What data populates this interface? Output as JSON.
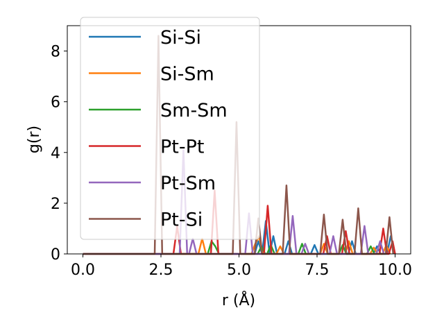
{
  "chart_data": {
    "type": "line",
    "title": "",
    "xlabel": "r (Å)",
    "ylabel": "g(r)",
    "xlim": [
      -0.5,
      10.5
    ],
    "ylim": [
      0,
      9
    ],
    "xticks": [
      "0.0",
      "2.5",
      "5.0",
      "7.5",
      "10.0"
    ],
    "yticks": [
      "0",
      "2",
      "4",
      "6",
      "8"
    ],
    "legend_position": "upper-left",
    "grid": false,
    "series": [
      {
        "name": "Si-Si",
        "color": "#1f77b4",
        "points": [
          [
            0,
            0
          ],
          [
            5.5,
            0
          ],
          [
            5.62,
            0.5
          ],
          [
            5.74,
            0
          ],
          [
            5.86,
            1.3
          ],
          [
            5.98,
            0
          ],
          [
            6.1,
            0.7
          ],
          [
            6.22,
            0
          ],
          [
            6.46,
            0
          ],
          [
            6.58,
            0.5
          ],
          [
            6.7,
            0
          ],
          [
            7.3,
            0
          ],
          [
            7.42,
            0.35
          ],
          [
            7.54,
            0
          ],
          [
            8.5,
            0
          ],
          [
            8.62,
            0.5
          ],
          [
            8.74,
            0
          ],
          [
            9.3,
            0
          ],
          [
            9.42,
            0.3
          ],
          [
            9.54,
            0
          ],
          [
            9.74,
            0
          ],
          [
            9.86,
            0.7
          ],
          [
            10.0,
            0
          ]
        ]
      },
      {
        "name": "Si-Sm",
        "color": "#ff7f0e",
        "points": [
          [
            0,
            0
          ],
          [
            3.7,
            0
          ],
          [
            3.82,
            0.6
          ],
          [
            3.94,
            0
          ],
          [
            5.4,
            0
          ],
          [
            5.52,
            0.4
          ],
          [
            5.64,
            0.7
          ],
          [
            5.76,
            0
          ],
          [
            6.2,
            0
          ],
          [
            6.32,
            0.3
          ],
          [
            6.44,
            0
          ],
          [
            7.6,
            0
          ],
          [
            7.72,
            0.4
          ],
          [
            7.84,
            0
          ],
          [
            8.4,
            0
          ],
          [
            8.52,
            0.5
          ],
          [
            8.64,
            0
          ],
          [
            9.2,
            0
          ],
          [
            9.32,
            0.25
          ],
          [
            9.44,
            0
          ],
          [
            9.6,
            0
          ],
          [
            9.72,
            0.35
          ],
          [
            9.84,
            0
          ]
        ]
      },
      {
        "name": "Sm-Sm",
        "color": "#2ca02c",
        "points": [
          [
            0,
            0
          ],
          [
            4.0,
            0
          ],
          [
            4.12,
            0.5
          ],
          [
            4.24,
            0.3
          ],
          [
            4.36,
            0
          ],
          [
            5.6,
            0
          ],
          [
            5.72,
            0.3
          ],
          [
            5.84,
            0
          ],
          [
            5.9,
            0
          ],
          [
            6.02,
            0.35
          ],
          [
            6.14,
            0
          ],
          [
            6.9,
            0
          ],
          [
            7.02,
            0.4
          ],
          [
            7.14,
            0
          ],
          [
            8.2,
            0
          ],
          [
            8.32,
            0.35
          ],
          [
            8.44,
            0
          ],
          [
            9.1,
            0
          ],
          [
            9.22,
            0.3
          ],
          [
            9.34,
            0
          ]
        ]
      },
      {
        "name": "Pt-Pt",
        "color": "#d62728",
        "points": [
          [
            0,
            0
          ],
          [
            2.9,
            0
          ],
          [
            3.02,
            1.1
          ],
          [
            3.14,
            0
          ],
          [
            4.1,
            0
          ],
          [
            4.22,
            2.5
          ],
          [
            4.34,
            0
          ],
          [
            5.8,
            0
          ],
          [
            5.92,
            1.9
          ],
          [
            6.04,
            0
          ],
          [
            7.7,
            0
          ],
          [
            7.82,
            0.7
          ],
          [
            7.94,
            0
          ],
          [
            8.3,
            0
          ],
          [
            8.42,
            0.9
          ],
          [
            8.54,
            0
          ],
          [
            9.5,
            0
          ],
          [
            9.62,
            1.0
          ],
          [
            9.74,
            0
          ],
          [
            9.8,
            0
          ],
          [
            9.92,
            0.5
          ],
          [
            10.0,
            0
          ]
        ]
      },
      {
        "name": "Pt-Sm",
        "color": "#9467bd",
        "points": [
          [
            0,
            0
          ],
          [
            3.1,
            0
          ],
          [
            3.22,
            4.1
          ],
          [
            3.34,
            0
          ],
          [
            3.4,
            0
          ],
          [
            3.52,
            0.6
          ],
          [
            3.64,
            0
          ],
          [
            5.2,
            0
          ],
          [
            5.32,
            1.6
          ],
          [
            5.44,
            0
          ],
          [
            6.6,
            0
          ],
          [
            6.72,
            1.5
          ],
          [
            6.84,
            0
          ],
          [
            7.0,
            0
          ],
          [
            7.12,
            0.4
          ],
          [
            7.24,
            0
          ],
          [
            7.9,
            0
          ],
          [
            8.02,
            0.7
          ],
          [
            8.14,
            0
          ],
          [
            8.9,
            0
          ],
          [
            9.02,
            1.1
          ],
          [
            9.14,
            0
          ],
          [
            9.4,
            0
          ],
          [
            9.52,
            0.5
          ],
          [
            9.64,
            0
          ]
        ]
      },
      {
        "name": "Pt-Si",
        "color": "#8c564b",
        "points": [
          [
            0,
            0
          ],
          [
            2.3,
            0
          ],
          [
            2.42,
            8.6
          ],
          [
            2.54,
            0
          ],
          [
            4.8,
            0
          ],
          [
            4.92,
            5.2
          ],
          [
            5.04,
            0
          ],
          [
            5.5,
            0
          ],
          [
            5.62,
            1.4
          ],
          [
            5.74,
            0
          ],
          [
            6.4,
            0
          ],
          [
            6.52,
            2.7
          ],
          [
            6.64,
            0
          ],
          [
            7.6,
            0
          ],
          [
            7.72,
            1.55
          ],
          [
            7.84,
            0
          ],
          [
            8.2,
            0
          ],
          [
            8.32,
            1.35
          ],
          [
            8.44,
            0
          ],
          [
            8.7,
            0
          ],
          [
            8.82,
            1.8
          ],
          [
            8.94,
            0
          ],
          [
            9.7,
            0
          ],
          [
            9.82,
            1.45
          ],
          [
            9.94,
            0
          ]
        ]
      }
    ]
  }
}
